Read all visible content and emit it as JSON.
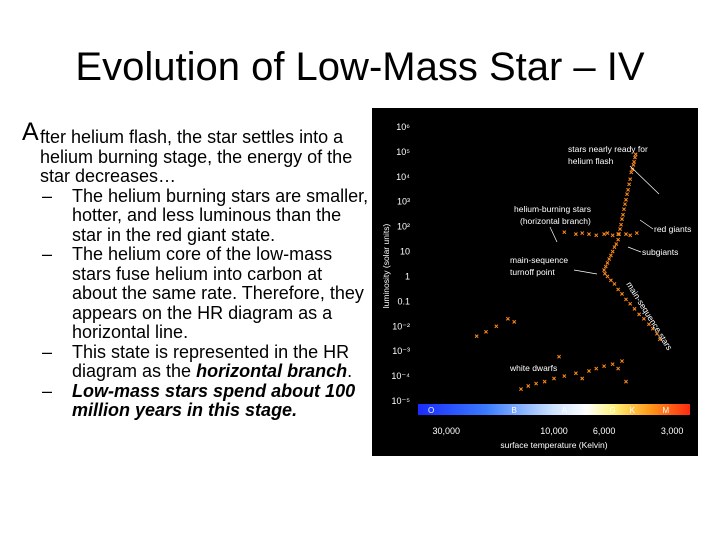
{
  "slide": {
    "title": "Evolution of Low-Mass Star – IV",
    "lead_first_letter": "A",
    "lead_rest": "fter helium flash, the star settles into a helium burning stage, the energy of the star decreases…",
    "bullets": [
      "The helium burning stars are smaller, hotter, and less luminous than the star in the red giant state.",
      "The helium core of the low-mass stars fuse helium into carbon at about the same rate. Therefore, they appears on the HR diagram as a horizontal line."
    ],
    "bullet3_before": "This state is represented in the HR diagram as the ",
    "bullet3_em": "horizontal branch",
    "bullet3_after": ".",
    "bullet4": "Low-mass stars spend about 100 million years in this stage.",
    "dash": "–"
  },
  "chart_data": {
    "type": "scatter",
    "title": "",
    "xlabel": "surface temperature (Kelvin)",
    "ylabel": "luminosity (solar units)",
    "x_scale": "log",
    "x_reversed": true,
    "y_scale": "log",
    "ylim": [
      1e-05,
      1000000
    ],
    "y_ticks": [
      "10⁶",
      "10⁵",
      "10⁴",
      "10³",
      "10²",
      "10",
      "1",
      "0.1",
      "10⁻²",
      "10⁻³",
      "10⁻⁴",
      "10⁻⁵"
    ],
    "x_ticks": [
      "30,000",
      "10,000",
      "6,000",
      "3,000"
    ],
    "spectral_classes": [
      "O",
      "B",
      "A",
      "F",
      "G",
      "K",
      "M"
    ],
    "annotations": {
      "flash": [
        "stars nearly ready for",
        "helium flash"
      ],
      "hb": [
        "helium-burning stars",
        "(horizontal branch)"
      ],
      "red_giants": "red giants",
      "subgiants": "subgiants",
      "turnoff": [
        "main-sequence",
        "turnoff point"
      ],
      "main_sequence": "main-sequence stars",
      "white_dwarfs": "white dwarfs"
    },
    "series": [
      {
        "role": "globular-cluster stars",
        "color": "#ff8c1a",
        "points": [
          [
            4350,
            80000
          ],
          [
            4380,
            60000
          ],
          [
            4420,
            40000
          ],
          [
            4450,
            30000
          ],
          [
            4500,
            20000
          ],
          [
            4550,
            15000
          ],
          [
            4600,
            8000
          ],
          [
            4650,
            5000
          ],
          [
            4700,
            3000
          ],
          [
            4750,
            2000
          ],
          [
            4800,
            1200
          ],
          [
            4850,
            800
          ],
          [
            4900,
            500
          ],
          [
            4950,
            300
          ],
          [
            5000,
            200
          ],
          [
            5050,
            120
          ],
          [
            5100,
            80
          ],
          [
            5150,
            50
          ],
          [
            5200,
            30
          ],
          [
            5300,
            20
          ],
          [
            5400,
            15
          ],
          [
            5500,
            10
          ],
          [
            5600,
            7
          ],
          [
            5700,
            5
          ],
          [
            5800,
            3.5
          ],
          [
            5900,
            2.5
          ],
          [
            6000,
            1.8
          ],
          [
            5950,
            1.3
          ],
          [
            5800,
            1
          ],
          [
            5600,
            0.7
          ],
          [
            5400,
            0.5
          ],
          [
            5200,
            0.3
          ],
          [
            5000,
            0.2
          ],
          [
            4800,
            0.12
          ],
          [
            4600,
            0.08
          ],
          [
            4400,
            0.05
          ],
          [
            4200,
            0.03
          ],
          [
            4000,
            0.02
          ],
          [
            3800,
            0.012
          ],
          [
            3650,
            0.008
          ],
          [
            3500,
            0.005
          ],
          [
            3400,
            0.003
          ],
          [
            7000,
            50
          ],
          [
            6000,
            50
          ],
          [
            5200,
            50
          ],
          [
            4800,
            50
          ],
          [
            4300,
            55
          ],
          [
            4600,
            45
          ],
          [
            5500,
            45
          ],
          [
            5800,
            55
          ],
          [
            9000,
            60
          ],
          [
            8000,
            50
          ],
          [
            7500,
            55
          ],
          [
            6500,
            45
          ],
          [
            14000,
            3e-05
          ],
          [
            13000,
            4e-05
          ],
          [
            12000,
            5e-05
          ],
          [
            11000,
            6e-05
          ],
          [
            10000,
            8e-05
          ],
          [
            9000,
            0.0001
          ],
          [
            8000,
            0.00013
          ],
          [
            7000,
            0.00016
          ],
          [
            6500,
            0.0002
          ],
          [
            6000,
            0.00025
          ],
          [
            5500,
            0.0003
          ],
          [
            5000,
            0.0004
          ],
          [
            4800,
            6e-05
          ],
          [
            5200,
            0.0002
          ],
          [
            9500,
            0.0006
          ],
          [
            7500,
            8e-05
          ],
          [
            20000,
            0.006
          ],
          [
            18000,
            0.01
          ],
          [
            16000,
            0.02
          ],
          [
            22000,
            0.004
          ],
          [
            15000,
            0.015
          ]
        ]
      }
    ]
  }
}
